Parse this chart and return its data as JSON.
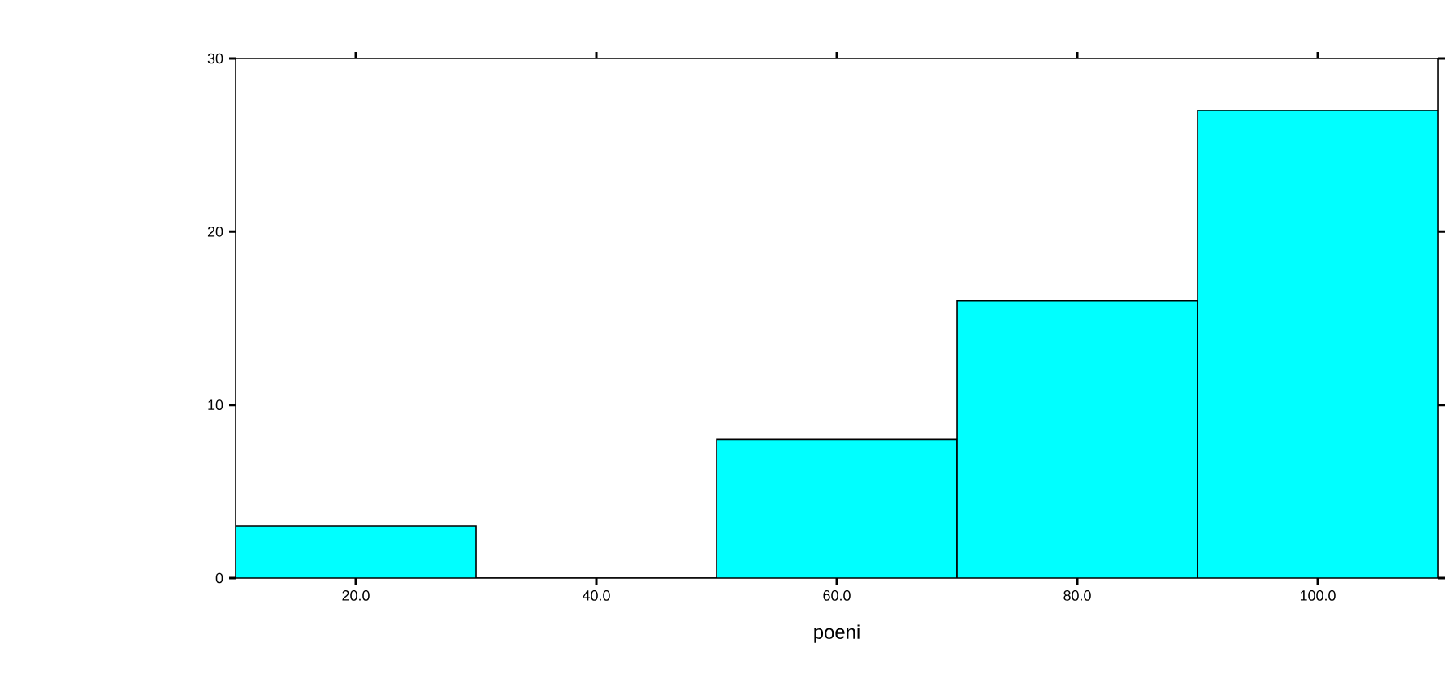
{
  "chart_data": {
    "type": "histogram",
    "xlabel": "poeni",
    "bins": [
      10,
      30,
      50,
      70,
      90,
      110
    ],
    "values": [
      3,
      0,
      8,
      16,
      27
    ],
    "color": "#00ffff",
    "xlim": [
      10,
      110
    ],
    "xticks": [
      {
        "value": 20,
        "label": "20.0"
      },
      {
        "value": 40,
        "label": "40.0"
      },
      {
        "value": 60,
        "label": "60.0"
      },
      {
        "value": 80,
        "label": "80.0"
      },
      {
        "value": 100,
        "label": "100.0"
      }
    ],
    "ylim": [
      0,
      30
    ],
    "yticks": [
      0,
      10,
      20,
      30
    ]
  }
}
